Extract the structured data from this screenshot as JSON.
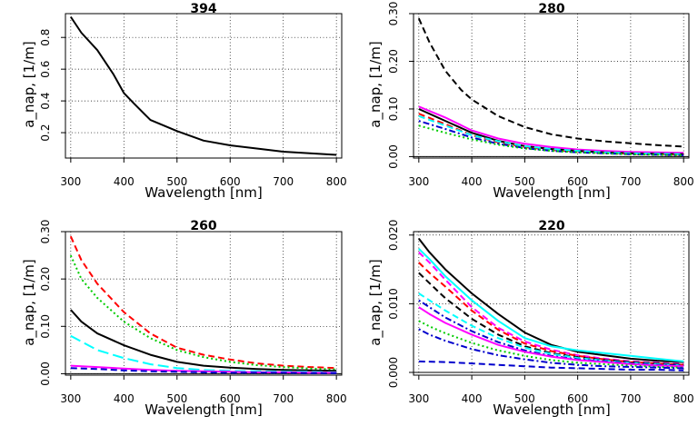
{
  "chart_data": [
    {
      "type": "line",
      "title": "394",
      "xlabel": "Wavelength [nm]",
      "ylabel": "a_nap, [1/m]",
      "xlim": [
        290,
        810
      ],
      "ylim": [
        0.04,
        0.95
      ],
      "xticks": [
        "300",
        "400",
        "500",
        "600",
        "700",
        "800"
      ],
      "yticks": [
        "0.2",
        "0.4",
        "0.6",
        "0.8"
      ],
      "ytick_values": [
        0.2,
        0.4,
        0.6,
        0.8
      ],
      "grid": true,
      "series": [
        {
          "color": "#000000",
          "dash": "solid",
          "x": [
            300,
            320,
            350,
            380,
            400,
            420,
            450,
            500,
            550,
            600,
            650,
            700,
            750,
            800
          ],
          "y": [
            0.93,
            0.83,
            0.72,
            0.57,
            0.45,
            0.38,
            0.28,
            0.21,
            0.15,
            0.12,
            0.1,
            0.08,
            0.07,
            0.06
          ]
        }
      ]
    },
    {
      "type": "line",
      "title": "280",
      "xlabel": "Wavelength [nm]",
      "ylabel": "a_nap, [1/m]",
      "xlim": [
        290,
        810
      ],
      "ylim": [
        -0.003,
        0.3
      ],
      "xticks": [
        "300",
        "400",
        "500",
        "600",
        "700",
        "800"
      ],
      "yticks": [
        "0.00",
        "0.10",
        "0.20",
        "0.30"
      ],
      "ytick_values": [
        0,
        0.1,
        0.2,
        0.3
      ],
      "grid": true,
      "series": [
        {
          "color": "#000000",
          "dash": "dashed",
          "x": [
            300,
            320,
            350,
            380,
            400,
            450,
            500,
            550,
            600,
            650,
            700,
            750,
            800
          ],
          "y": [
            0.29,
            0.24,
            0.18,
            0.14,
            0.12,
            0.085,
            0.062,
            0.047,
            0.038,
            0.032,
            0.028,
            0.024,
            0.021
          ]
        },
        {
          "color": "#ff00ff",
          "dash": "solid",
          "x": [
            300,
            350,
            400,
            450,
            500,
            550,
            600,
            650,
            700,
            750,
            800
          ],
          "y": [
            0.105,
            0.082,
            0.055,
            0.038,
            0.027,
            0.02,
            0.015,
            0.012,
            0.01,
            0.009,
            0.008
          ]
        },
        {
          "color": "#000000",
          "dash": "solid",
          "x": [
            300,
            350,
            400,
            450,
            500,
            550,
            600,
            650,
            700,
            750,
            800
          ],
          "y": [
            0.1,
            0.075,
            0.05,
            0.033,
            0.022,
            0.016,
            0.012,
            0.009,
            0.007,
            0.006,
            0.005
          ]
        },
        {
          "color": "#ff0000",
          "dash": "dashed",
          "x": [
            300,
            350,
            400,
            450,
            500,
            550,
            600,
            650,
            700,
            750,
            800
          ],
          "y": [
            0.09,
            0.068,
            0.045,
            0.03,
            0.02,
            0.014,
            0.011,
            0.008,
            0.006,
            0.005,
            0.004
          ]
        },
        {
          "color": "#00ffff",
          "dash": "dashed",
          "x": [
            300,
            350,
            400,
            450,
            500,
            550,
            600,
            650,
            700,
            750,
            800
          ],
          "y": [
            0.085,
            0.065,
            0.045,
            0.032,
            0.022,
            0.016,
            0.012,
            0.009,
            0.007,
            0.006,
            0.005
          ]
        },
        {
          "color": "#0000cc",
          "dash": "dotdash",
          "x": [
            300,
            350,
            400,
            450,
            500,
            550,
            600,
            650,
            700,
            750,
            800
          ],
          "y": [
            0.075,
            0.058,
            0.04,
            0.027,
            0.018,
            0.012,
            0.009,
            0.007,
            0.005,
            0.004,
            0.003
          ]
        },
        {
          "color": "#00cc00",
          "dash": "dotted",
          "x": [
            300,
            350,
            400,
            450,
            500,
            550,
            600,
            650,
            700,
            750,
            800
          ],
          "y": [
            0.065,
            0.05,
            0.036,
            0.025,
            0.017,
            0.012,
            0.009,
            0.007,
            0.005,
            0.004,
            0.003
          ]
        }
      ]
    },
    {
      "type": "line",
      "title": "260",
      "xlabel": "Wavelength [nm]",
      "ylabel": "a_nap, [1/m]",
      "xlim": [
        290,
        810
      ],
      "ylim": [
        -0.003,
        0.3
      ],
      "xticks": [
        "300",
        "400",
        "500",
        "600",
        "700",
        "800"
      ],
      "yticks": [
        "0.00",
        "0.10",
        "0.20",
        "0.30"
      ],
      "ytick_values": [
        0,
        0.1,
        0.2,
        0.3
      ],
      "grid": true,
      "series": [
        {
          "color": "#ff0000",
          "dash": "dashed",
          "x": [
            300,
            320,
            350,
            400,
            450,
            500,
            550,
            600,
            650,
            700,
            750,
            800
          ],
          "y": [
            0.29,
            0.24,
            0.19,
            0.13,
            0.085,
            0.055,
            0.04,
            0.03,
            0.022,
            0.017,
            0.014,
            0.012
          ]
        },
        {
          "color": "#00cc00",
          "dash": "dotted",
          "x": [
            300,
            320,
            350,
            400,
            450,
            500,
            550,
            600,
            650,
            700,
            750,
            800
          ],
          "y": [
            0.25,
            0.2,
            0.16,
            0.11,
            0.075,
            0.05,
            0.035,
            0.025,
            0.018,
            0.014,
            0.011,
            0.009
          ]
        },
        {
          "color": "#000000",
          "dash": "solid",
          "x": [
            300,
            320,
            350,
            400,
            450,
            500,
            550,
            600,
            650,
            700,
            750,
            800
          ],
          "y": [
            0.135,
            0.11,
            0.085,
            0.06,
            0.04,
            0.025,
            0.017,
            0.013,
            0.01,
            0.008,
            0.007,
            0.006
          ]
        },
        {
          "color": "#00ffff",
          "dash": "longdash",
          "x": [
            300,
            320,
            350,
            400,
            450,
            500,
            550,
            600,
            650,
            700,
            750,
            800
          ],
          "y": [
            0.08,
            0.068,
            0.05,
            0.033,
            0.02,
            0.012,
            0.008,
            0.006,
            0.005,
            0.004,
            0.004,
            0.003
          ]
        },
        {
          "color": "#ff00ff",
          "dash": "solid",
          "x": [
            300,
            350,
            400,
            450,
            500,
            550,
            600,
            650,
            700,
            750,
            800
          ],
          "y": [
            0.017,
            0.014,
            0.011,
            0.008,
            0.006,
            0.005,
            0.004,
            0.003,
            0.003,
            0.002,
            0.002
          ]
        },
        {
          "color": "#0000cc",
          "dash": "dashed",
          "x": [
            300,
            350,
            400,
            450,
            500,
            550,
            600,
            650,
            700,
            750,
            800
          ],
          "y": [
            0.012,
            0.01,
            0.007,
            0.005,
            0.004,
            0.003,
            0.002,
            0.002,
            0.002,
            0.001,
            0.001
          ]
        }
      ]
    },
    {
      "type": "line",
      "title": "220",
      "xlabel": "Wavelength [nm]",
      "ylabel": "a_nap, [1/m]",
      "xlim": [
        290,
        810
      ],
      "ylim": [
        -0.0004,
        0.0205
      ],
      "xticks": [
        "300",
        "400",
        "500",
        "600",
        "700",
        "800"
      ],
      "yticks": [
        "0.000",
        "0.010",
        "0.020"
      ],
      "ytick_values": [
        0,
        0.01,
        0.02
      ],
      "grid": true,
      "series": [
        {
          "color": "#000000",
          "dash": "solid",
          "x": [
            300,
            320,
            350,
            400,
            450,
            500,
            550,
            600,
            650,
            700,
            750,
            800
          ],
          "y": [
            0.0195,
            0.0175,
            0.015,
            0.0115,
            0.0085,
            0.0058,
            0.004,
            0.003,
            0.0025,
            0.002,
            0.0017,
            0.0015
          ]
        },
        {
          "color": "#00ffff",
          "dash": "solid",
          "x": [
            300,
            320,
            350,
            400,
            450,
            500,
            550,
            600,
            650,
            700,
            750,
            800
          ],
          "y": [
            0.018,
            0.0165,
            0.014,
            0.0105,
            0.0075,
            0.005,
            0.0038,
            0.0032,
            0.0028,
            0.0024,
            0.002,
            0.0016
          ]
        },
        {
          "color": "#ff00ff",
          "dash": "dashed",
          "x": [
            300,
            320,
            350,
            400,
            450,
            500,
            550,
            600,
            650,
            700,
            750,
            800
          ],
          "y": [
            0.0175,
            0.016,
            0.0135,
            0.0095,
            0.0065,
            0.0045,
            0.0033,
            0.0025,
            0.002,
            0.0016,
            0.0014,
            0.0012
          ]
        },
        {
          "color": "#ff0000",
          "dash": "dashed",
          "x": [
            300,
            320,
            350,
            400,
            450,
            500,
            550,
            600,
            650,
            700,
            750,
            800
          ],
          "y": [
            0.016,
            0.0145,
            0.0125,
            0.009,
            0.0062,
            0.0042,
            0.0031,
            0.0024,
            0.0019,
            0.0015,
            0.0013,
            0.0011
          ]
        },
        {
          "color": "#000000",
          "dash": "dashed",
          "x": [
            300,
            320,
            350,
            400,
            450,
            500,
            550,
            600,
            650,
            700,
            750,
            800
          ],
          "y": [
            0.0145,
            0.013,
            0.0108,
            0.0078,
            0.0055,
            0.0038,
            0.0028,
            0.0022,
            0.0018,
            0.0015,
            0.0013,
            0.0011
          ]
        },
        {
          "color": "#00ffff",
          "dash": "dashed",
          "x": [
            300,
            320,
            350,
            400,
            450,
            500,
            550,
            600,
            650,
            700,
            750,
            800
          ],
          "y": [
            0.0115,
            0.0105,
            0.009,
            0.0068,
            0.005,
            0.0036,
            0.0027,
            0.0021,
            0.0017,
            0.0014,
            0.0012,
            0.001
          ]
        },
        {
          "color": "#0000cc",
          "dash": "dotdash",
          "x": [
            300,
            320,
            350,
            400,
            450,
            500,
            550,
            600,
            650,
            700,
            750,
            800
          ],
          "y": [
            0.0105,
            0.0095,
            0.008,
            0.006,
            0.0044,
            0.0032,
            0.0024,
            0.0019,
            0.0016,
            0.0013,
            0.0011,
            0.001
          ]
        },
        {
          "color": "#ff00ff",
          "dash": "solid",
          "x": [
            300,
            320,
            350,
            400,
            450,
            500,
            550,
            600,
            650,
            700,
            750,
            800
          ],
          "y": [
            0.0095,
            0.0085,
            0.0072,
            0.0055,
            0.004,
            0.003,
            0.0023,
            0.0018,
            0.0015,
            0.0012,
            0.001,
            0.0009
          ]
        },
        {
          "color": "#00cc00",
          "dash": "dotted",
          "x": [
            300,
            320,
            350,
            400,
            450,
            500,
            550,
            600,
            650,
            700,
            750,
            800
          ],
          "y": [
            0.0075,
            0.0067,
            0.0057,
            0.0043,
            0.0032,
            0.0024,
            0.0018,
            0.0014,
            0.0012,
            0.001,
            0.0008,
            0.0007
          ]
        },
        {
          "color": "#0000cc",
          "dash": "dotdash",
          "x": [
            300,
            320,
            350,
            400,
            450,
            500,
            550,
            600,
            650,
            700,
            750,
            800
          ],
          "y": [
            0.0063,
            0.0055,
            0.0046,
            0.0034,
            0.0025,
            0.0019,
            0.0014,
            0.0011,
            0.0009,
            0.0008,
            0.0007,
            0.0006
          ]
        },
        {
          "color": "#0000cc",
          "dash": "dashed",
          "x": [
            300,
            350,
            400,
            450,
            500,
            550,
            600,
            650,
            700,
            750,
            800
          ],
          "y": [
            0.0016,
            0.0015,
            0.0013,
            0.0011,
            0.0009,
            0.0007,
            0.0006,
            0.0005,
            0.0004,
            0.0004,
            0.0003
          ]
        }
      ]
    }
  ]
}
